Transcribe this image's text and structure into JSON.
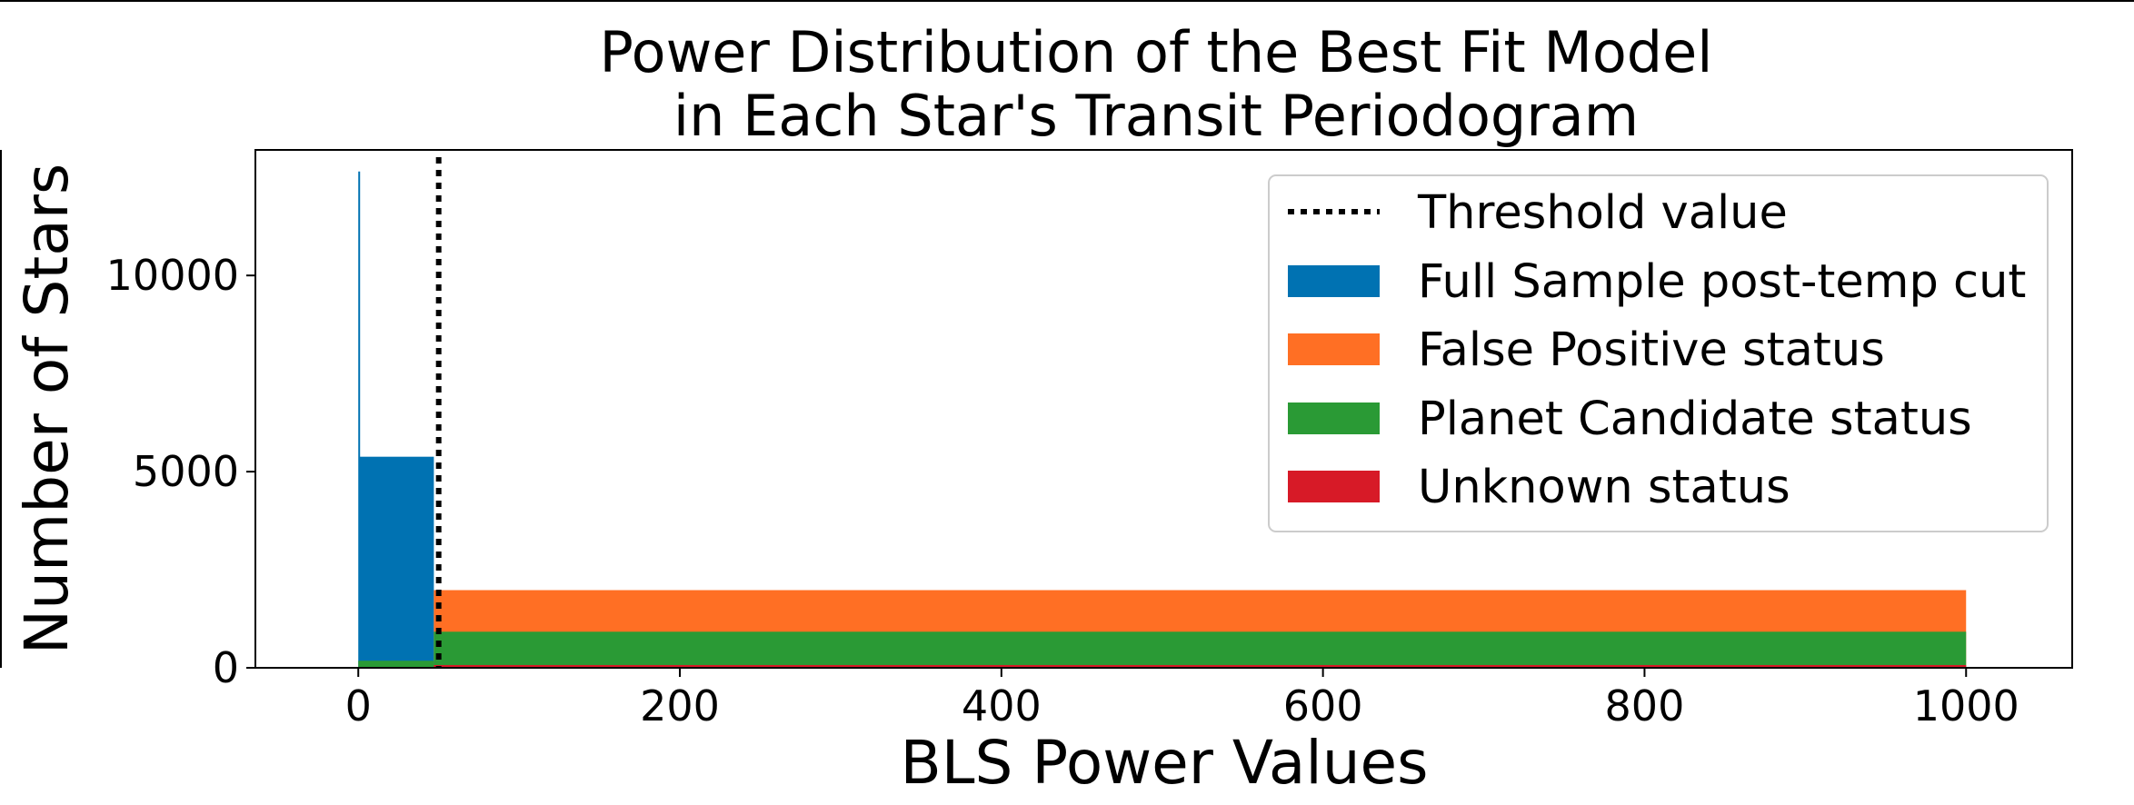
{
  "chart_data": {
    "type": "bar",
    "title_lines": [
      "Power Distribution of the Best Fit Model",
      "in Each Star's Transit Periodogram"
    ],
    "xlabel": "BLS Power Values",
    "ylabel": "Number of Stars",
    "xlim": [
      -64,
      1066
    ],
    "ylim": [
      0,
      13200
    ],
    "xticks": [
      0,
      200,
      400,
      600,
      800,
      1000
    ],
    "yticks": [
      0,
      5000,
      10000
    ],
    "threshold": {
      "label": "Threshold value",
      "x": 50,
      "color": "#000000"
    },
    "series": [
      {
        "name": "Full Sample post-temp cut",
        "color": "#0072b2",
        "bins": [
          {
            "x0": 0,
            "x1": 1,
            "value": 12650
          },
          {
            "x0": 1,
            "x1": 47,
            "value": 5380
          }
        ]
      },
      {
        "name": "False Positive status",
        "color": "#ff6f24",
        "bins": [
          {
            "x0": 47,
            "x1": 1000,
            "value": 1980
          }
        ]
      },
      {
        "name": "Planet Candidate status",
        "color": "#2a9a35",
        "bins": [
          {
            "x0": 0,
            "x1": 47,
            "value": 180
          },
          {
            "x0": 47,
            "x1": 1000,
            "value": 920
          }
        ]
      },
      {
        "name": "Unknown status",
        "color": "#d71a27",
        "bins": [
          {
            "x0": 47,
            "x1": 1000,
            "value": 70
          }
        ]
      }
    ],
    "legend_position": "top-right",
    "grid": false
  }
}
